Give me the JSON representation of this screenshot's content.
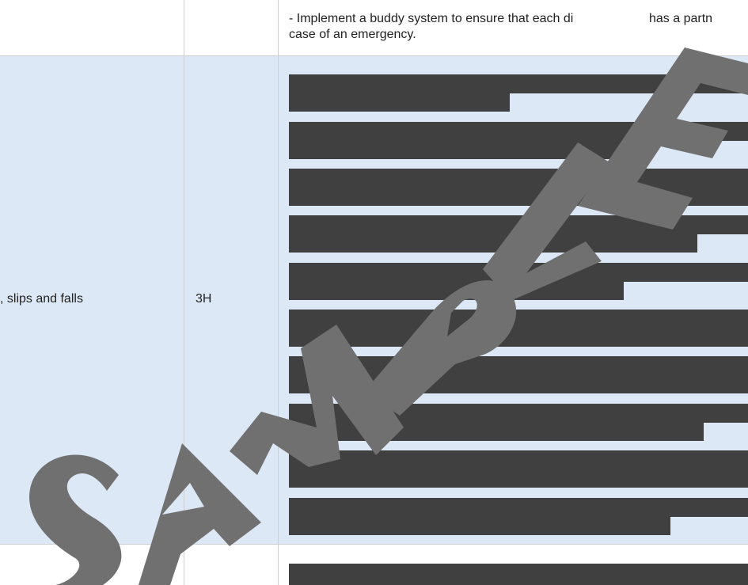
{
  "rows": {
    "top": {
      "controls_line_1": "- Implement a buddy system to ensure that each di",
      "controls_line_1_end": "has a partn",
      "controls_line_2": "case of an emergency."
    },
    "middle": {
      "hazard": ", slips and falls",
      "risk_rating": "3H"
    }
  },
  "watermark": {
    "text": "SAMPLE",
    "color": "#707070"
  },
  "colors": {
    "row_highlight": "#dce8f5",
    "redaction": "#404040",
    "grid": "#cfcfcf"
  }
}
